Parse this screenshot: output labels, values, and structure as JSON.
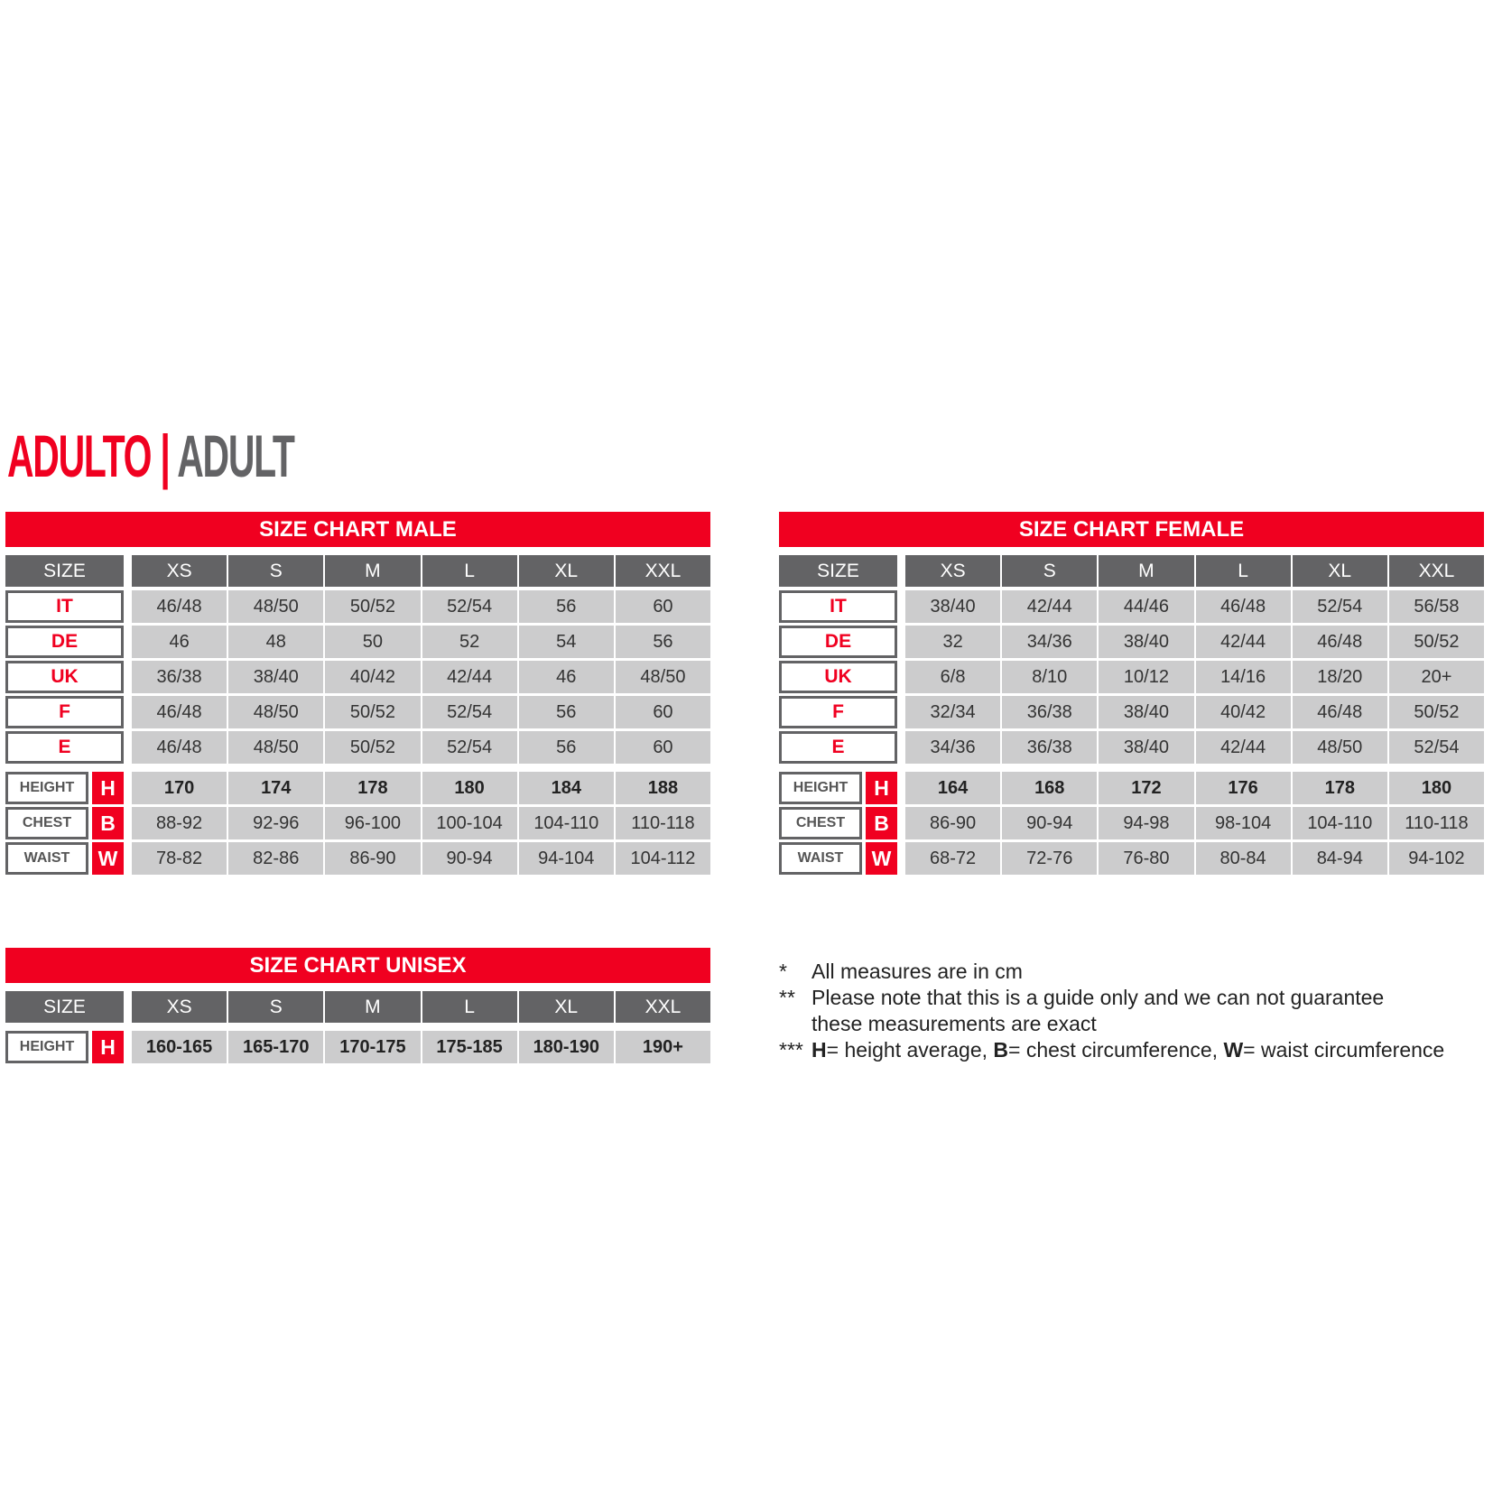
{
  "title": {
    "red": "ADULTO",
    "sep": "|",
    "gray": "ADULT"
  },
  "colors": {
    "accent": "#f00020",
    "header_gray": "#636365",
    "cell_gray": "#cccccd"
  },
  "sizes": [
    "XS",
    "S",
    "M",
    "L",
    "XL",
    "XXL"
  ],
  "size_label": "SIZE",
  "tables": {
    "male": {
      "title": "SIZE CHART MALE",
      "codes": [
        {
          "label": "IT",
          "values": [
            "46/48",
            "48/50",
            "50/52",
            "52/54",
            "56",
            "60"
          ]
        },
        {
          "label": "DE",
          "values": [
            "46",
            "48",
            "50",
            "52",
            "54",
            "56"
          ]
        },
        {
          "label": "UK",
          "values": [
            "36/38",
            "38/40",
            "40/42",
            "42/44",
            "46",
            "48/50"
          ]
        },
        {
          "label": "F",
          "values": [
            "46/48",
            "48/50",
            "50/52",
            "52/54",
            "56",
            "60"
          ]
        },
        {
          "label": "E",
          "values": [
            "46/48",
            "48/50",
            "50/52",
            "52/54",
            "56",
            "60"
          ]
        }
      ],
      "measures": [
        {
          "label": "HEIGHT",
          "letter": "H",
          "bold": true,
          "values": [
            "170",
            "174",
            "178",
            "180",
            "184",
            "188"
          ]
        },
        {
          "label": "CHEST",
          "letter": "B",
          "bold": false,
          "values": [
            "88-92",
            "92-96",
            "96-100",
            "100-104",
            "104-110",
            "110-118"
          ]
        },
        {
          "label": "WAIST",
          "letter": "W",
          "bold": false,
          "values": [
            "78-82",
            "82-86",
            "86-90",
            "90-94",
            "94-104",
            "104-112"
          ]
        }
      ]
    },
    "female": {
      "title": "SIZE CHART FEMALE",
      "codes": [
        {
          "label": "IT",
          "values": [
            "38/40",
            "42/44",
            "44/46",
            "46/48",
            "52/54",
            "56/58"
          ]
        },
        {
          "label": "DE",
          "values": [
            "32",
            "34/36",
            "38/40",
            "42/44",
            "46/48",
            "50/52"
          ]
        },
        {
          "label": "UK",
          "values": [
            "6/8",
            "8/10",
            "10/12",
            "14/16",
            "18/20",
            "20+"
          ]
        },
        {
          "label": "F",
          "values": [
            "32/34",
            "36/38",
            "38/40",
            "40/42",
            "46/48",
            "50/52"
          ]
        },
        {
          "label": "E",
          "values": [
            "34/36",
            "36/38",
            "38/40",
            "42/44",
            "48/50",
            "52/54"
          ]
        }
      ],
      "measures": [
        {
          "label": "HEIGHT",
          "letter": "H",
          "bold": true,
          "values": [
            "164",
            "168",
            "172",
            "176",
            "178",
            "180"
          ]
        },
        {
          "label": "CHEST",
          "letter": "B",
          "bold": false,
          "values": [
            "86-90",
            "90-94",
            "94-98",
            "98-104",
            "104-110",
            "110-118"
          ]
        },
        {
          "label": "WAIST",
          "letter": "W",
          "bold": false,
          "values": [
            "68-72",
            "72-76",
            "76-80",
            "80-84",
            "84-94",
            "94-102"
          ]
        }
      ]
    },
    "unisex": {
      "title": "SIZE CHART UNISEX",
      "codes": [],
      "measures": [
        {
          "label": "HEIGHT",
          "letter": "H",
          "bold": true,
          "values": [
            "160-165",
            "165-170",
            "170-175",
            "175-185",
            "180-190",
            "190+"
          ]
        }
      ]
    }
  },
  "notes": [
    {
      "marker": "*",
      "parts": [
        {
          "text": "All measures are in cm",
          "bold": false
        }
      ]
    },
    {
      "marker": "**",
      "parts": [
        {
          "text": "Please note that this is a guide only and we can not guarantee",
          "bold": false
        }
      ]
    },
    {
      "marker": "",
      "parts": [
        {
          "text": "these measurements are exact",
          "bold": false
        }
      ]
    },
    {
      "marker": "***",
      "parts": [
        {
          "text": "H",
          "bold": true
        },
        {
          "text": "= height average, ",
          "bold": false
        },
        {
          "text": "B",
          "bold": true
        },
        {
          "text": "= chest circumference, ",
          "bold": false
        },
        {
          "text": "W",
          "bold": true
        },
        {
          "text": "= waist circumference",
          "bold": false
        }
      ]
    }
  ]
}
